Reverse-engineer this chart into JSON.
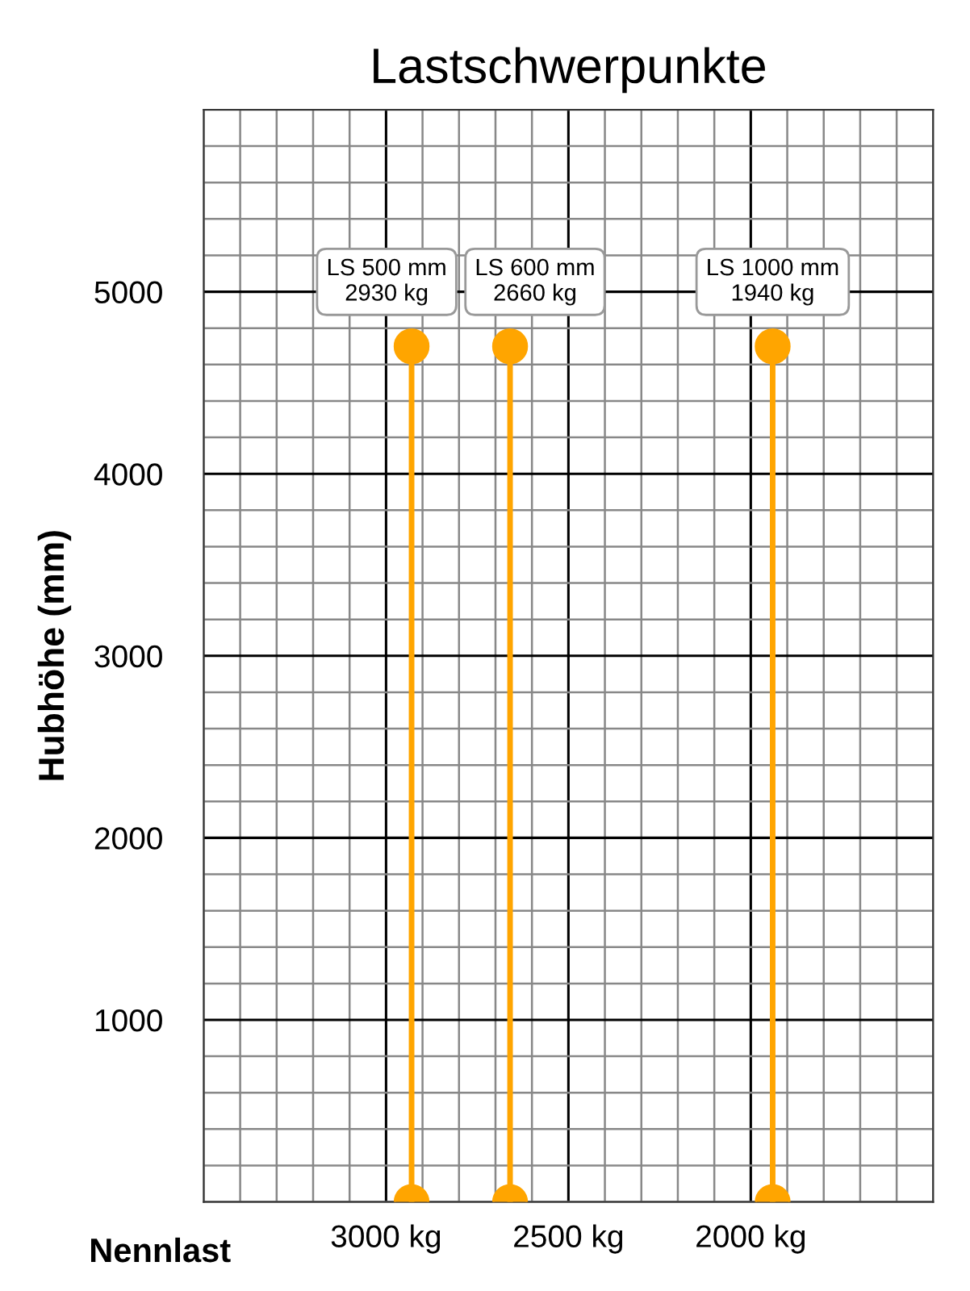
{
  "chart_data": {
    "type": "line",
    "title": "Lastschwerpunkte",
    "xlabel": "Nennlast",
    "ylabel": "Hubhöhe (mm)",
    "series": [
      {
        "color": "#ffa500",
        "x": [
          2930,
          2930
        ],
        "values": [
          0,
          4700
        ]
      },
      {
        "color": "#ffa500",
        "x": [
          2660,
          2660
        ],
        "values": [
          0,
          4700
        ]
      },
      {
        "color": "#ffa500",
        "x": [
          1940,
          1940
        ],
        "values": [
          0,
          4700
        ]
      }
    ],
    "marker": "circle",
    "line_style": "solid",
    "grid": true,
    "legend": false,
    "xlim": [
      3500,
      1500
    ],
    "ylim": [
      0,
      6000
    ],
    "xticks": [
      {
        "value": 3500,
        "label": null
      },
      {
        "value": 3400,
        "label": null
      },
      {
        "value": 3300,
        "label": null
      },
      {
        "value": 3200,
        "label": null
      },
      {
        "value": 3100,
        "label": null
      },
      {
        "value": 3000,
        "label": "3000 kg"
      },
      {
        "value": 2900,
        "label": null
      },
      {
        "value": 2800,
        "label": null
      },
      {
        "value": 2700,
        "label": null
      },
      {
        "value": 2600,
        "label": null
      },
      {
        "value": 2500,
        "label": "2500 kg"
      },
      {
        "value": 2400,
        "label": null
      },
      {
        "value": 2300,
        "label": null
      },
      {
        "value": 2200,
        "label": null
      },
      {
        "value": 2100,
        "label": null
      },
      {
        "value": 2000,
        "label": "2000 kg"
      },
      {
        "value": 1900,
        "label": null
      },
      {
        "value": 1800,
        "label": null
      },
      {
        "value": 1700,
        "label": null
      },
      {
        "value": 1600,
        "label": null
      },
      {
        "value": 1500,
        "label": null
      }
    ],
    "yticks": [
      {
        "value": 0,
        "label": null
      },
      {
        "value": 200,
        "label": null
      },
      {
        "value": 400,
        "label": null
      },
      {
        "value": 600,
        "label": null
      },
      {
        "value": 800,
        "label": null
      },
      1000,
      {
        "value": 1200,
        "label": null
      },
      {
        "value": 1400,
        "label": null
      },
      {
        "value": 1600,
        "label": null
      },
      {
        "value": 1800,
        "label": null
      },
      2000,
      {
        "value": 2200,
        "label": null
      },
      {
        "value": 2400,
        "label": null
      },
      {
        "value": 2600,
        "label": null
      },
      {
        "value": 2800,
        "label": null
      },
      3000,
      {
        "value": 3200,
        "label": null
      },
      {
        "value": 3400,
        "label": null
      },
      {
        "value": 3600,
        "label": null
      },
      {
        "value": 3800,
        "label": null
      },
      4000,
      {
        "value": 4200,
        "label": null
      },
      {
        "value": 4400,
        "label": null
      },
      {
        "value": 4600,
        "label": null
      },
      {
        "value": 4800,
        "label": null
      },
      5000,
      {
        "value": 5200,
        "label": null
      },
      {
        "value": 5400,
        "label": null
      },
      {
        "value": 5600,
        "label": null
      },
      {
        "value": 5800,
        "label": null
      },
      {
        "value": 6000,
        "label": null
      }
    ],
    "annotations": [
      "LS 500 mm\n2930 kg",
      "LS 600 mm\n2660 kg",
      "LS 1000 mm\n1940 kg"
    ]
  }
}
